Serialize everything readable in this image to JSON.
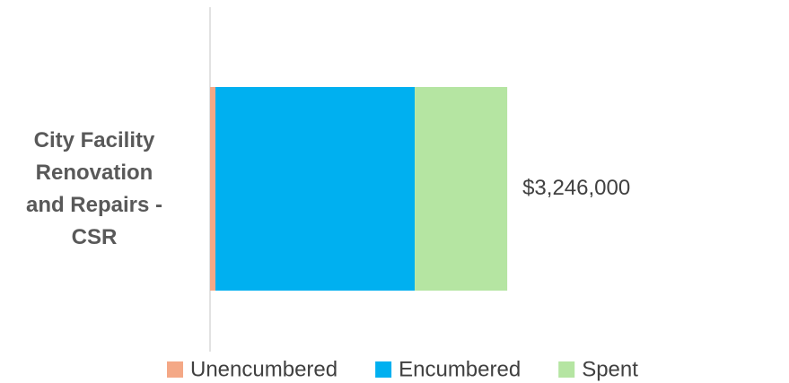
{
  "chart_data": {
    "type": "stacked_bar_horizontal",
    "categories": [
      "City Facility Renovation and Repairs - CSR"
    ],
    "series": [
      {
        "name": "Unencumbered",
        "color": "#f4a886",
        "values": [
          59000
        ]
      },
      {
        "name": "Encumbered",
        "color": "#00b0f0",
        "values": [
          2177000
        ]
      },
      {
        "name": "Spent",
        "color": "#b5e5a2",
        "values": [
          1010000
        ]
      }
    ],
    "total": 3246000,
    "total_label": "$3,246,000",
    "xlim": [
      0,
      3500000
    ],
    "legend": "bottom"
  }
}
